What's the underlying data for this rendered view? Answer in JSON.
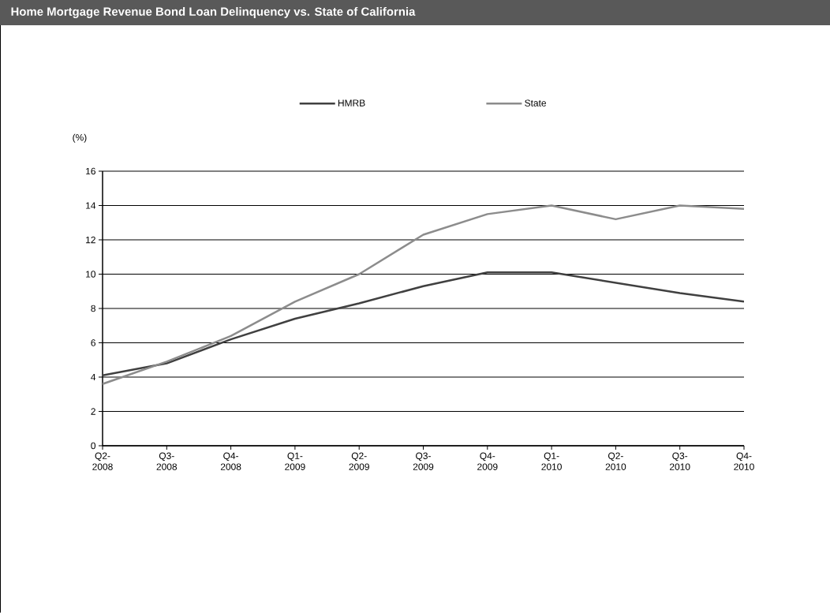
{
  "chart_data": {
    "type": "line",
    "title": "Home Mortgage Revenue Bond Loan Delinquency vs. State of California",
    "ylabel": "(%)",
    "categories": [
      "Q2- 2008",
      "Q3- 2008",
      "Q4- 2008",
      "Q1- 2009",
      "Q2- 2009",
      "Q3- 2009",
      "Q4- 2009",
      "Q1- 2010",
      "Q2- 2010",
      "Q3- 2010",
      "Q4- 2010"
    ],
    "series": [
      {
        "name": "HMRB",
        "color": "#404040",
        "values": [
          4.1,
          4.8,
          6.2,
          7.4,
          8.3,
          9.3,
          10.1,
          10.1,
          9.5,
          8.9,
          8.4
        ]
      },
      {
        "name": "State",
        "color": "#8c8c8c",
        "values": [
          3.6,
          4.9,
          6.4,
          8.4,
          10.0,
          12.3,
          13.5,
          14.0,
          13.2,
          14.0,
          13.8
        ]
      }
    ],
    "ylim": [
      0,
      16
    ],
    "yticks": [
      0,
      2,
      4,
      6,
      8,
      10,
      12,
      14,
      16
    ],
    "grid": "y",
    "legend": "top",
    "marker": "none",
    "line_style": "solid"
  }
}
